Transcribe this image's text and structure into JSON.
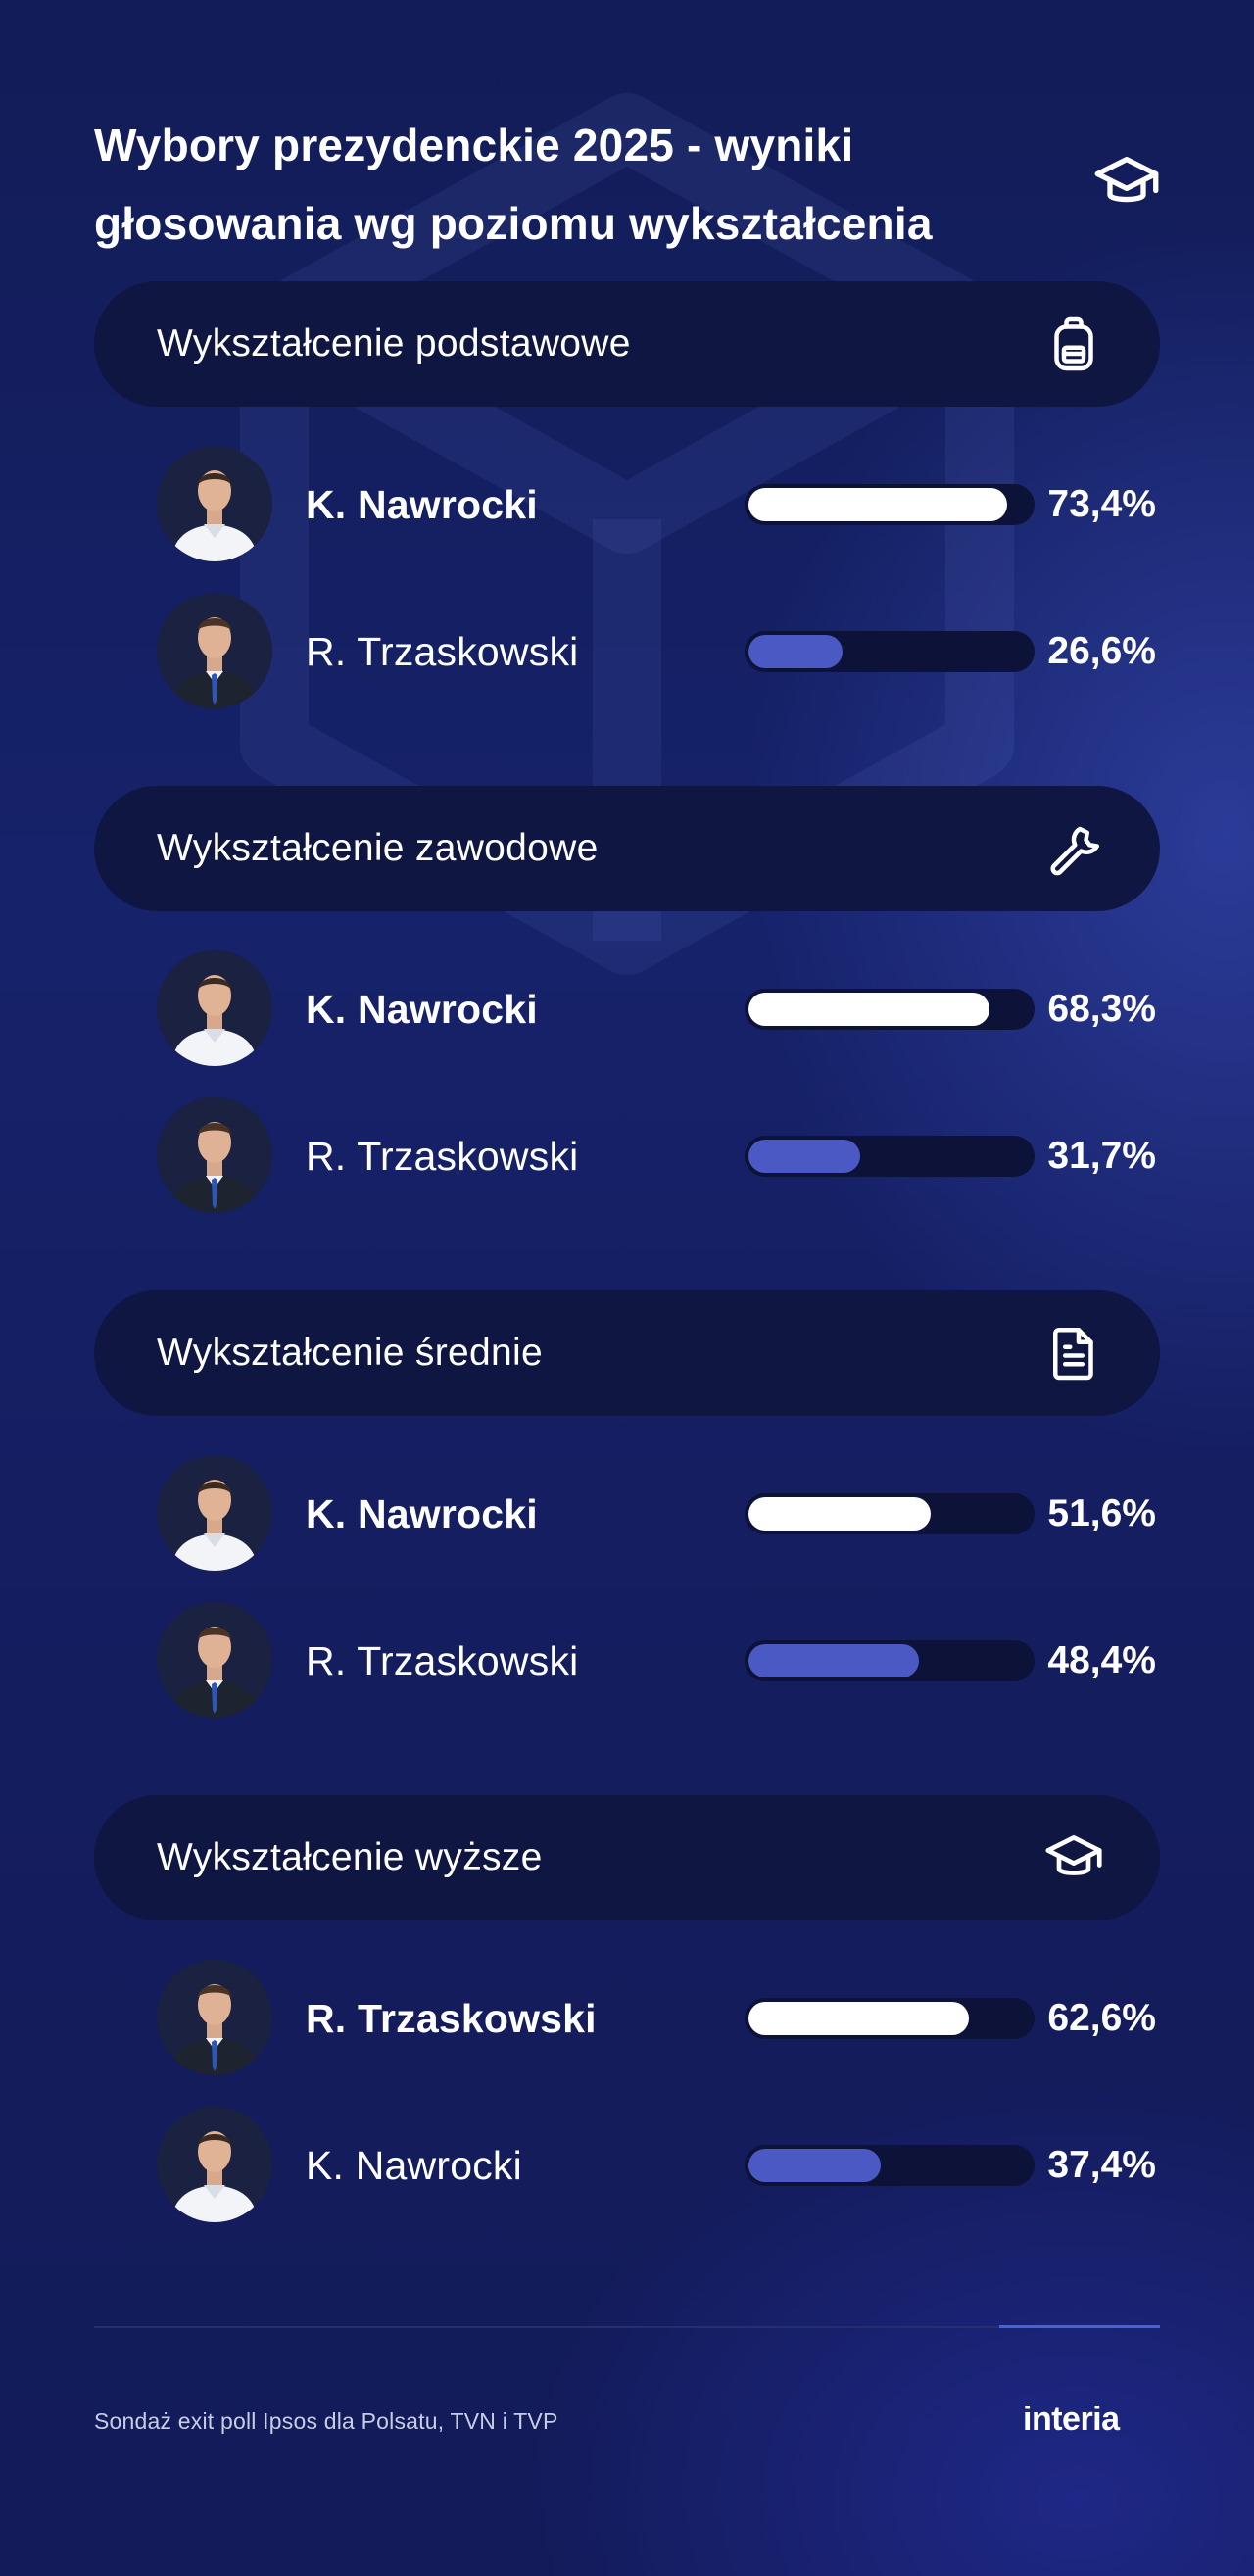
{
  "title": "Wybory prezydenckie 2025 - wyniki głosowania wg poziomu wykształcenia",
  "title_icon": "graduation-cap-icon",
  "colors": {
    "background": "#16226a",
    "header_pill": "#0f1641",
    "winner_bar": "#ffffff",
    "loser_bar": "#4b59c4",
    "bar_track": "#0c1238"
  },
  "chart_data": {
    "type": "bar",
    "orientation": "horizontal",
    "unit": "%",
    "xlim": [
      0,
      100
    ],
    "groups": [
      {
        "label": "Wykształcenie podstawowe",
        "icon": "backpack-icon",
        "rows": [
          {
            "candidate": "K. Nawrocki",
            "value": 73.4,
            "value_label": "73,4%",
            "winner": true
          },
          {
            "candidate": "R. Trzaskowski",
            "value": 26.6,
            "value_label": "26,6%",
            "winner": false
          }
        ]
      },
      {
        "label": "Wykształcenie zawodowe",
        "icon": "wrench-icon",
        "rows": [
          {
            "candidate": "K. Nawrocki",
            "value": 68.3,
            "value_label": "68,3%",
            "winner": true
          },
          {
            "candidate": "R. Trzaskowski",
            "value": 31.7,
            "value_label": "31,7%",
            "winner": false
          }
        ]
      },
      {
        "label": "Wykształcenie średnie",
        "icon": "document-icon",
        "rows": [
          {
            "candidate": "K. Nawrocki",
            "value": 51.6,
            "value_label": "51,6%",
            "winner": true
          },
          {
            "candidate": "R. Trzaskowski",
            "value": 48.4,
            "value_label": "48,4%",
            "winner": false
          }
        ]
      },
      {
        "label": "Wykształcenie wyższe",
        "icon": "graduation-cap-icon",
        "rows": [
          {
            "candidate": "R. Trzaskowski",
            "value": 62.6,
            "value_label": "62,6%",
            "winner": true
          },
          {
            "candidate": "K. Nawrocki",
            "value": 37.4,
            "value_label": "37,4%",
            "winner": false
          }
        ]
      }
    ]
  },
  "footer": {
    "source": "Sondaż exit poll Ipsos dla Polsatu, TVN i TVP",
    "logo": "interia"
  }
}
